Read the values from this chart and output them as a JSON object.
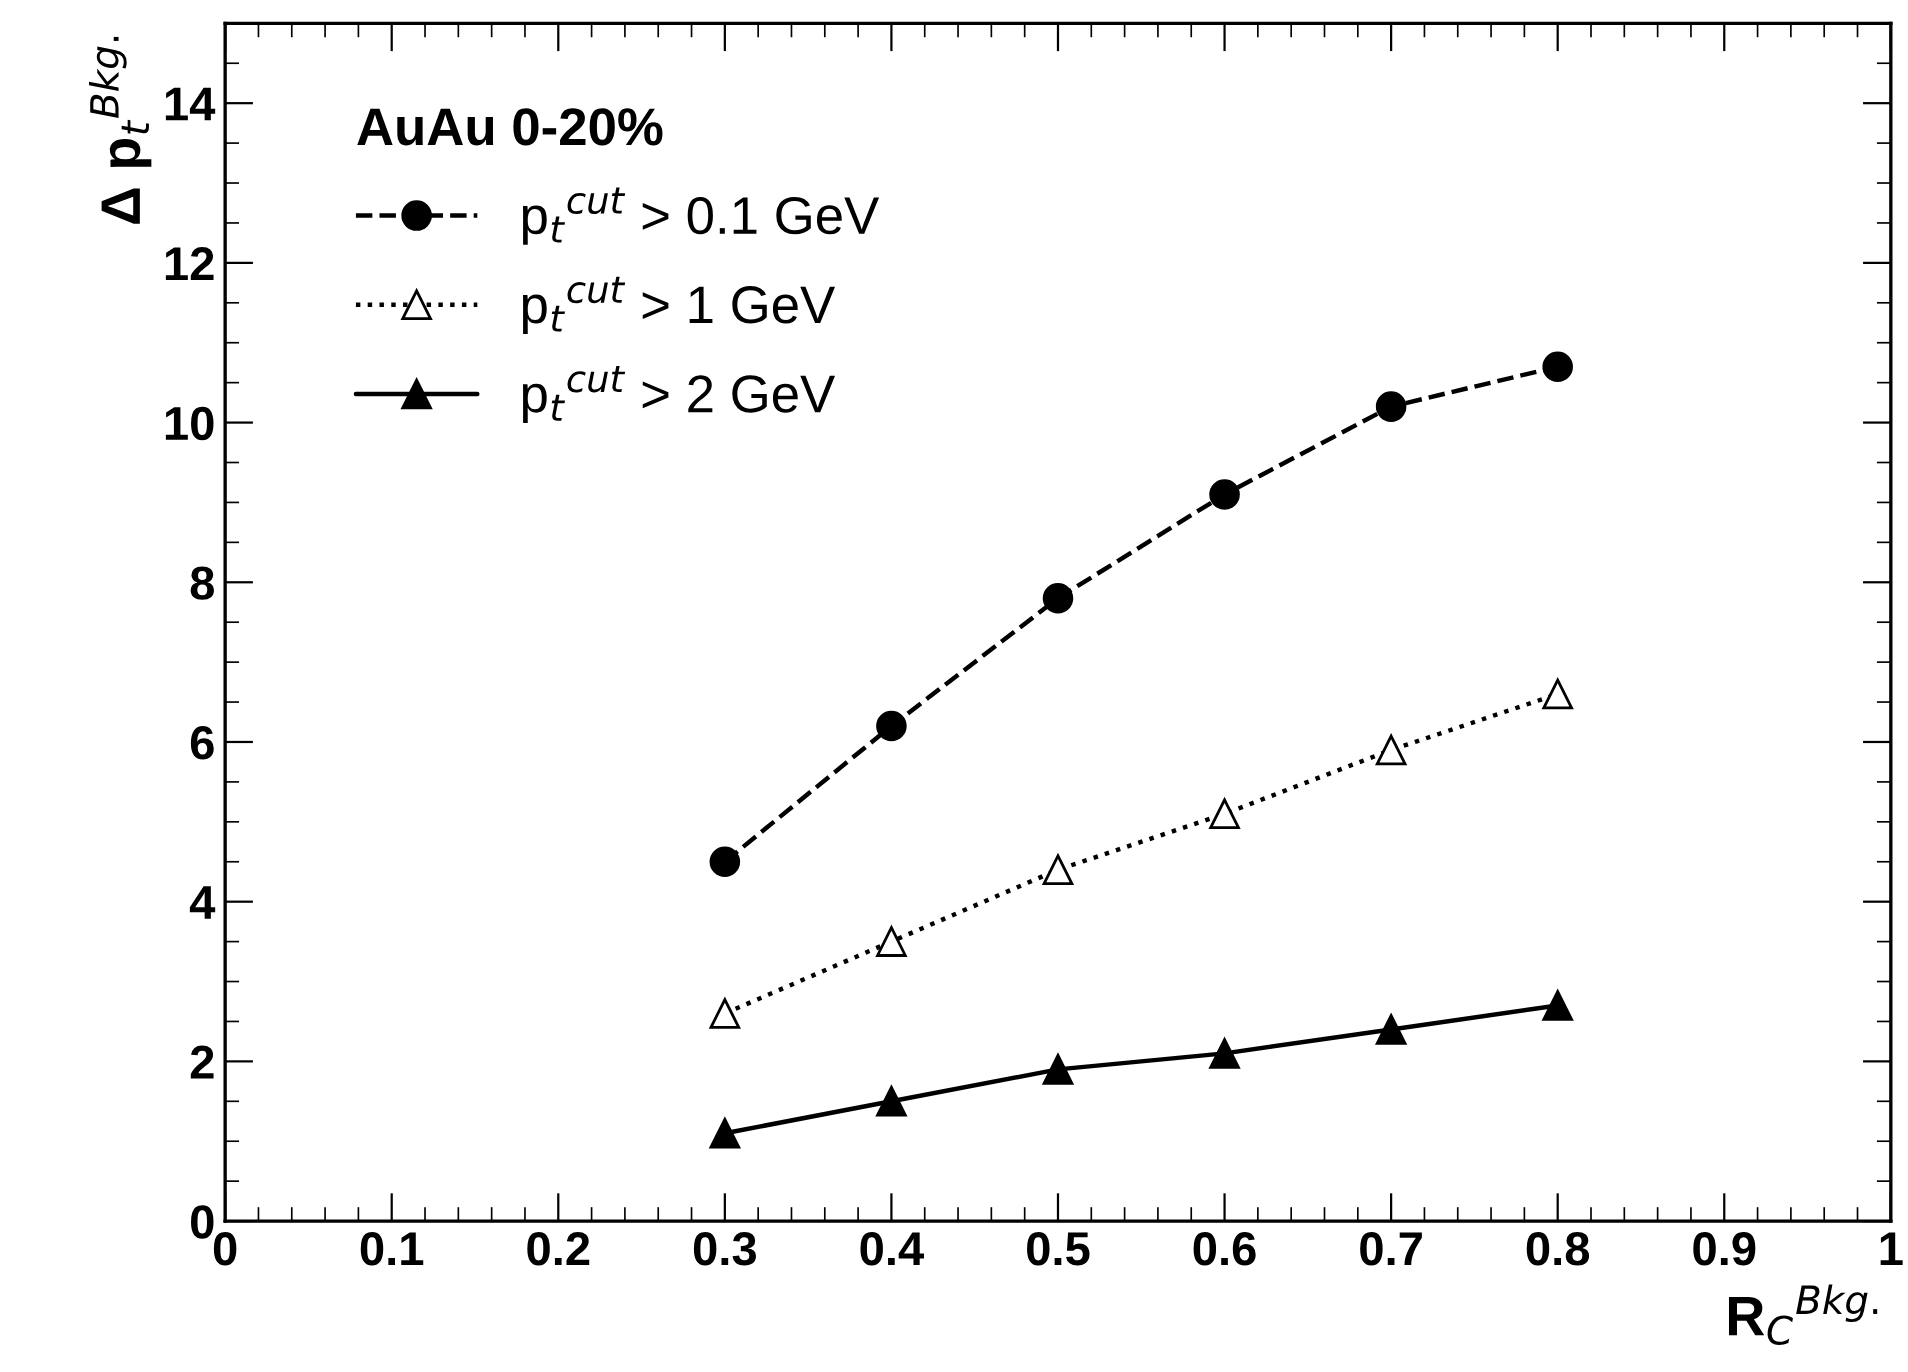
{
  "chart_data": {
    "type": "line",
    "xlabel": "R$_{C}$$^{Bkg.}$",
    "ylabel": "Δ p$_{t}$$^{Bkg.}$",
    "legend_title": "AuAu 0-20%",
    "legend": "top left",
    "grid": false,
    "x": [
      0.3,
      0.4,
      0.5,
      0.6,
      0.7,
      0.8
    ],
    "xlim": [
      0,
      1
    ],
    "xticks": [
      0,
      0.1,
      0.2,
      0.3,
      0.4,
      0.5,
      0.6,
      0.7,
      0.8,
      0.9,
      1
    ],
    "ylim": [
      0,
      15
    ],
    "yticks": [
      0,
      2,
      4,
      6,
      8,
      10,
      12,
      14
    ],
    "series": [
      {
        "name": "p$_{t}$$^{cut}$ > 0.1 GeV",
        "color": "#000000",
        "marker": "circle",
        "line_style": "dashed",
        "values": [
          4.5,
          6.2,
          7.8,
          9.1,
          10.2,
          10.7
        ]
      },
      {
        "name": "p$_{t}$$^{cut}$ > 1 GeV",
        "color": "#000000",
        "marker": "triangle_open",
        "line_style": "dotted",
        "values": [
          2.6,
          3.5,
          4.4,
          5.1,
          5.9,
          6.6
        ]
      },
      {
        "name": "p$_{t}$$^{cut}$ > 2 GeV",
        "color": "#000000",
        "marker": "triangle",
        "line_style": "solid",
        "values": [
          1.1,
          1.5,
          1.9,
          2.1,
          2.4,
          2.7
        ]
      }
    ]
  }
}
